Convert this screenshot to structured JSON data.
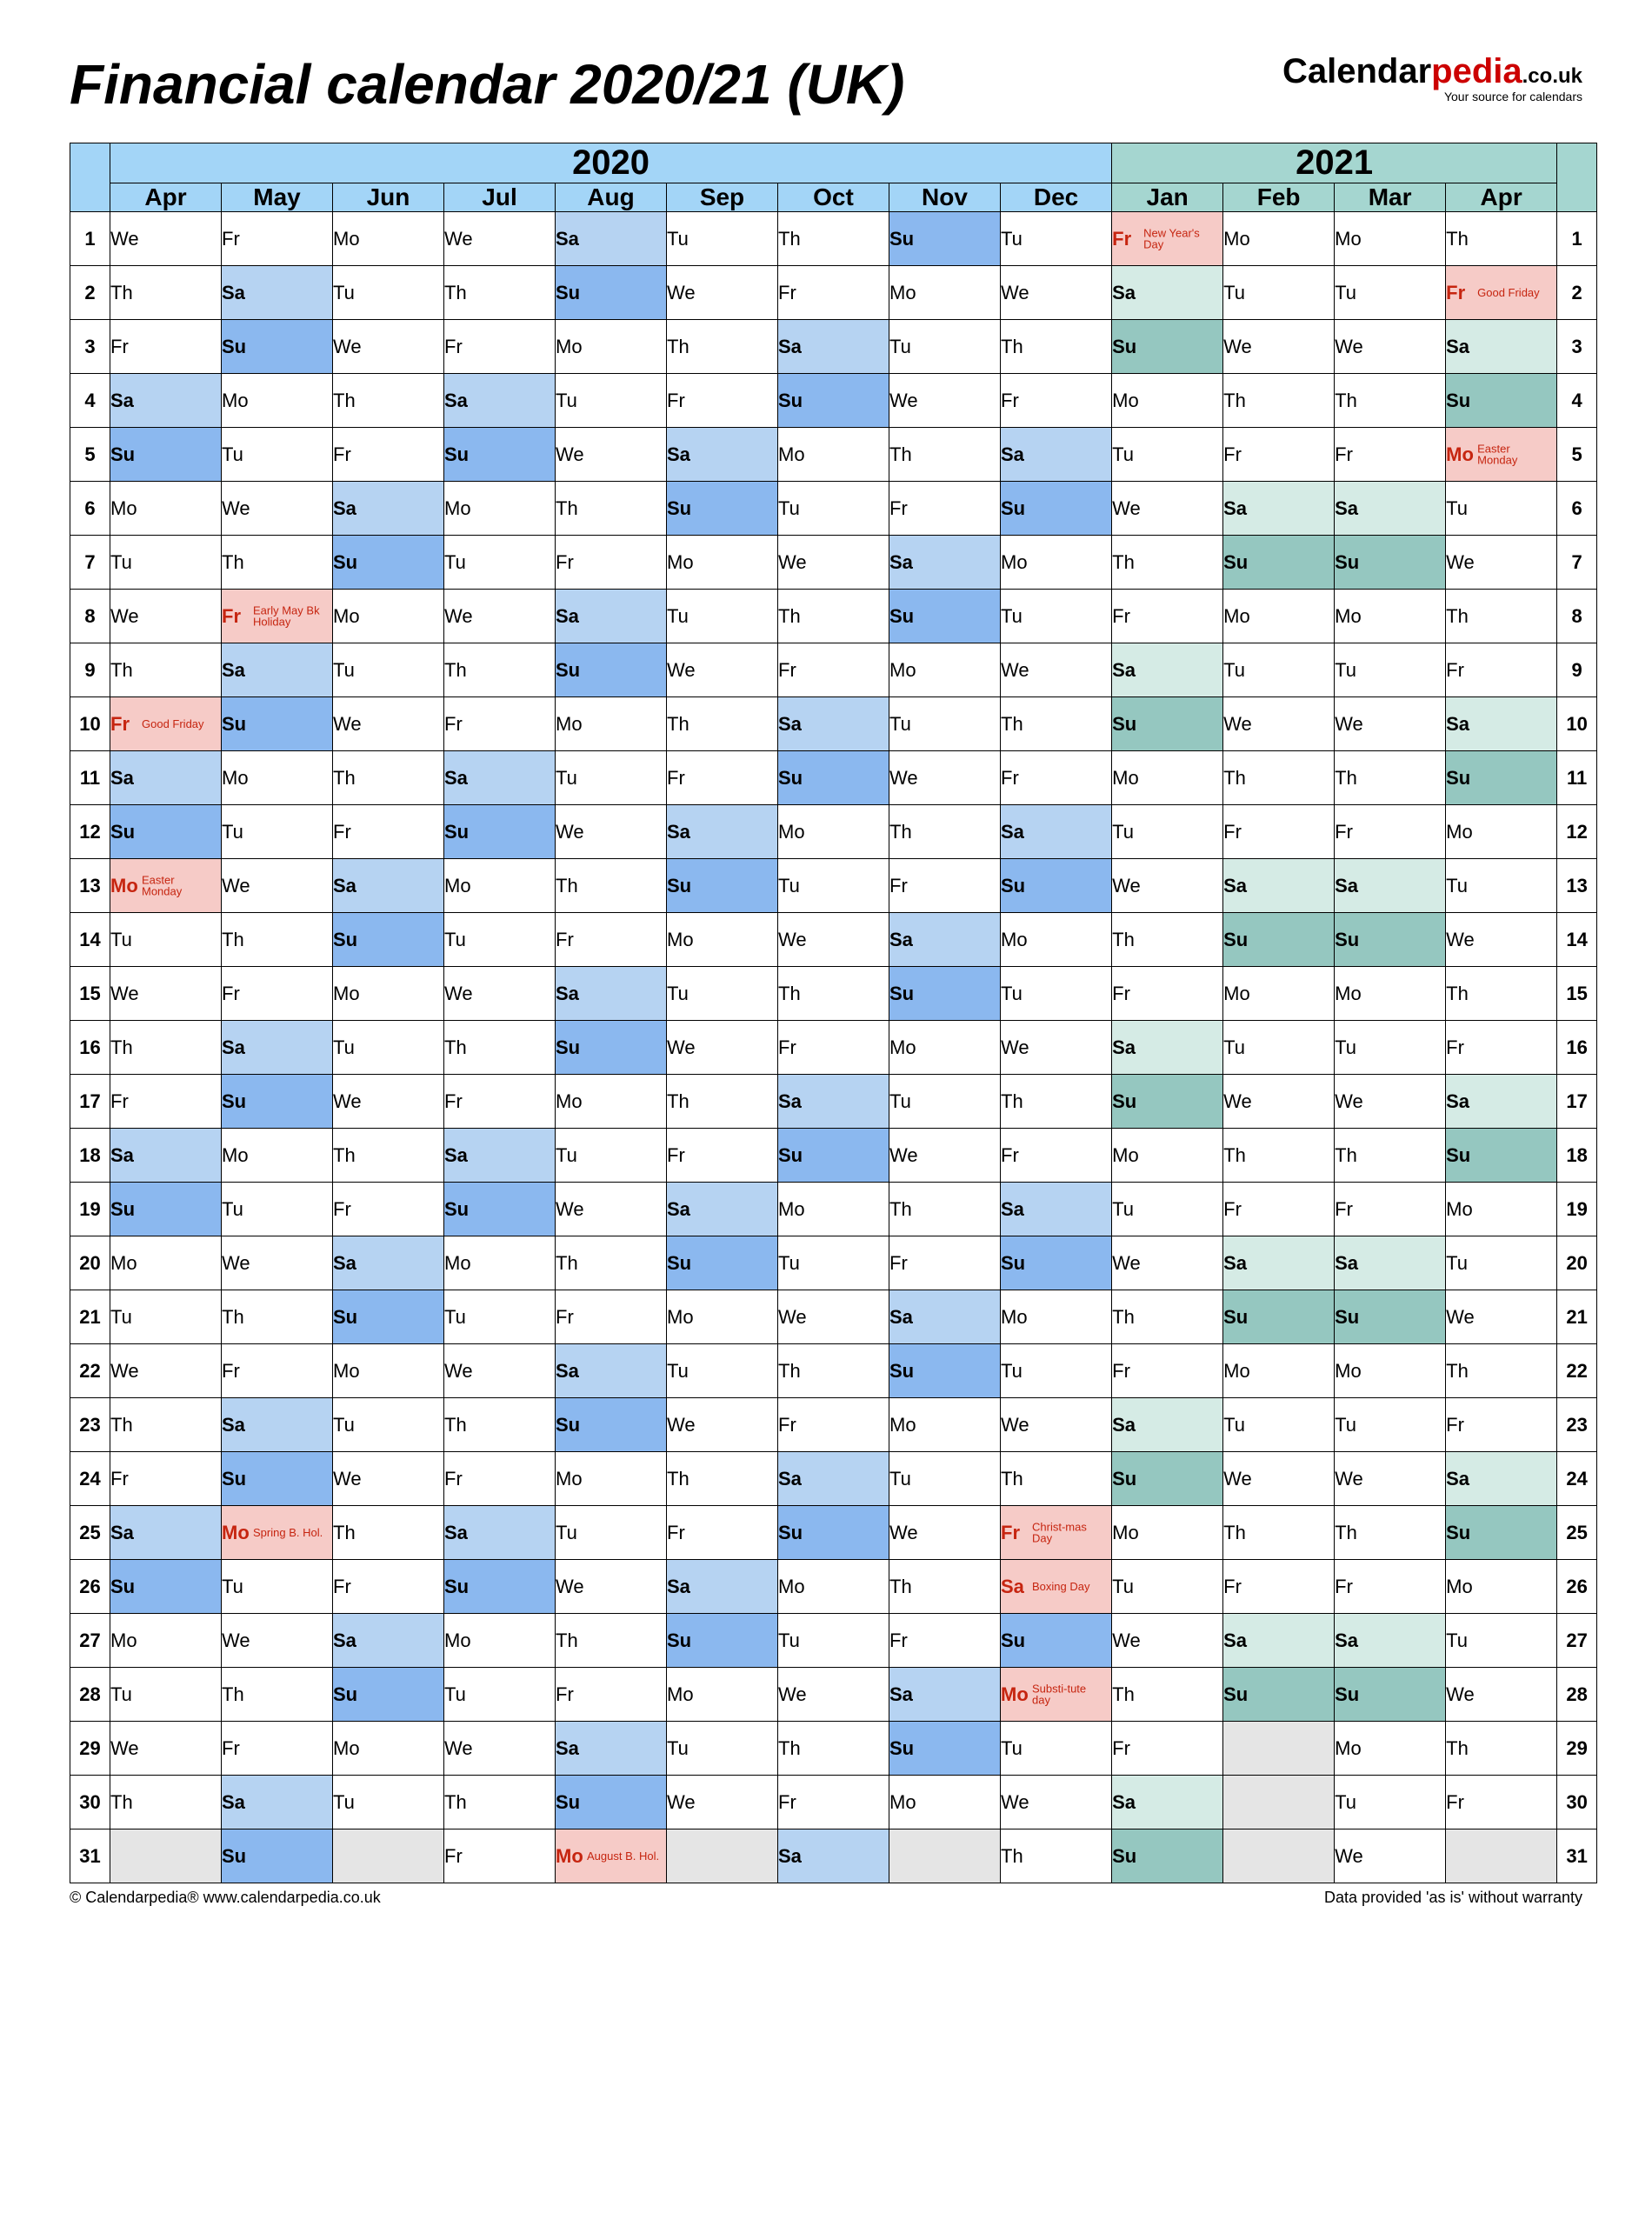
{
  "title": "Financial calendar 2020/21 (UK)",
  "logo": {
    "black1": "Calendar",
    "red": "pedia",
    "suffix": ".co.uk",
    "sub": "Your source for calendars"
  },
  "footer_left": "© Calendarpedia®   www.calendarpedia.co.uk",
  "footer_right": "Data provided 'as is' without warranty",
  "years": {
    "y2020": "2020",
    "y2021": "2021"
  },
  "months": [
    "Apr",
    "May",
    "Jun",
    "Jul",
    "Aug",
    "Sep",
    "Oct",
    "Nov",
    "Dec",
    "Jan",
    "Feb",
    "Mar",
    "Apr"
  ],
  "month_year_idx": [
    0,
    0,
    0,
    0,
    0,
    0,
    0,
    0,
    0,
    1,
    1,
    1,
    1
  ],
  "month_start_dow": [
    3,
    5,
    1,
    3,
    6,
    2,
    4,
    0,
    2,
    5,
    1,
    1,
    4
  ],
  "month_len": [
    30,
    31,
    30,
    31,
    31,
    30,
    31,
    30,
    31,
    31,
    28,
    31,
    30
  ],
  "dow_labels": [
    "Su",
    "Mo",
    "Tu",
    "We",
    "Th",
    "Fr",
    "Sa"
  ],
  "holidays": {
    "0": {
      "10": "Good Friday",
      "13": "Easter Monday"
    },
    "1": {
      "8": "Early May Bk Holiday",
      "25": "Spring B. Hol."
    },
    "4": {
      "31": "August B. Hol."
    },
    "8": {
      "25": "Christ-mas Day",
      "26": "Boxing Day",
      "28": "Substi-tute day"
    },
    "9": {
      "1": "New Year's Day"
    },
    "12": {
      "2": "Good Friday",
      "5": "Easter Monday"
    }
  },
  "colors": {
    "hdr2020": "#a3d5f7",
    "hdr2021": "#a5d6d0",
    "sat2020": "#b6d3f2",
    "sun2020": "#8bb8ef",
    "sat2021": "#d5ebe5",
    "sun2021": "#95c7c0",
    "holiday_bg": "#f6cbc7",
    "holiday_text": "#c62510",
    "empty": "#e5e5e5"
  }
}
